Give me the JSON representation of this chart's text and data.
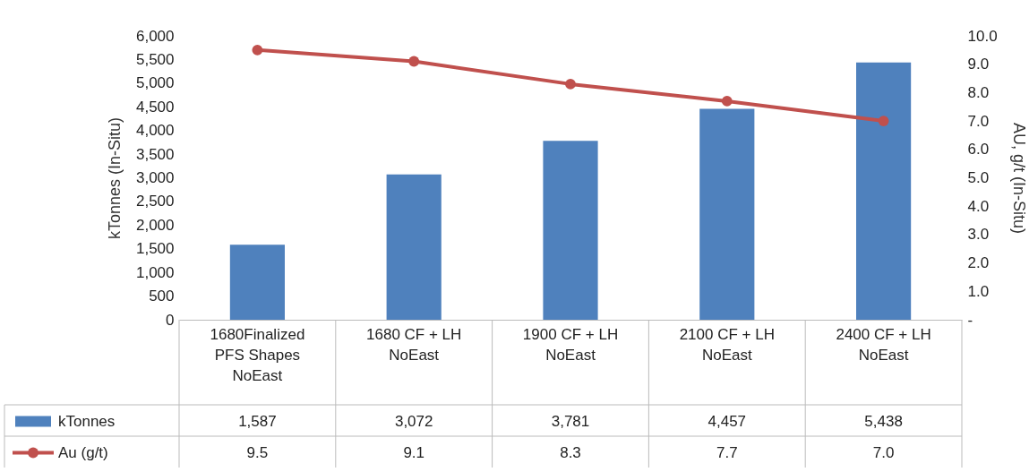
{
  "chart_data": {
    "type": "bar",
    "categories": [
      "1680Finalized PFS Shapes NoEast",
      "1680 CF + LH NoEast",
      "1900 CF + LH NoEast",
      "2100 CF + LH NoEast",
      "2400 CF + LH NoEast"
    ],
    "series": [
      {
        "name": "kTonnes",
        "color": "#4f81bd",
        "values": [
          1587,
          3072,
          3781,
          4457,
          5438
        ],
        "value_labels": [
          "1,587",
          "3,072",
          "3,781",
          "4,457",
          "5,438"
        ]
      },
      {
        "name": "Au (g/t)",
        "type": "line",
        "axis": "y2",
        "color": "#c0504d",
        "values": [
          9.5,
          9.1,
          8.3,
          7.7,
          7.0
        ],
        "value_labels": [
          "9.5",
          "9.1",
          "8.3",
          "7.7",
          "7.0"
        ]
      }
    ],
    "ylabel": "kTonnes (In-Situ)",
    "y2label": "AU, g/t (In-Situ)",
    "ylim": [
      0,
      6000
    ],
    "yticks": [
      0,
      500,
      {
        "value": 1000,
        "label": "1,000"
      },
      {
        "value": 1500,
        "label": "1,500"
      },
      {
        "value": 2000,
        "label": "2,000"
      },
      {
        "value": 2500,
        "label": "2,500"
      },
      {
        "value": 3000,
        "label": "3,000"
      },
      {
        "value": 3500,
        "label": "3,500"
      },
      {
        "value": 4000,
        "label": "4,000"
      },
      {
        "value": 4500,
        "label": "4,500"
      },
      {
        "value": 5000,
        "label": "5,000"
      },
      {
        "value": 5500,
        "label": "5,500"
      },
      {
        "value": 6000,
        "label": "6,000"
      }
    ],
    "y2lim": [
      0,
      10
    ],
    "y2ticks": [
      {
        "value": 0,
        "label": "-"
      },
      {
        "value": 1,
        "label": "1.0"
      },
      {
        "value": 2,
        "label": "2.0"
      },
      {
        "value": 3,
        "label": "3.0"
      },
      {
        "value": 4,
        "label": "4.0"
      },
      {
        "value": 5,
        "label": "5.0"
      },
      {
        "value": 6,
        "label": "6.0"
      },
      {
        "value": 7,
        "label": "7.0"
      },
      {
        "value": 8,
        "label": "8.0"
      },
      {
        "value": 9,
        "label": "9.0"
      },
      {
        "value": 10,
        "label": "10.0"
      }
    ],
    "legend": "bottom",
    "marker": "circle",
    "line_style": "solid"
  }
}
